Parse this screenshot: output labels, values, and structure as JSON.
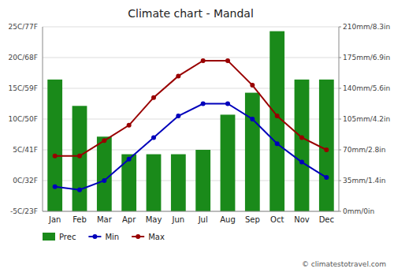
{
  "chart_data": {
    "type": "bar",
    "title": "Climate chart - Mandal",
    "categories": [
      "Jan",
      "Feb",
      "Mar",
      "Apr",
      "May",
      "Jun",
      "Jul",
      "Aug",
      "Sep",
      "Oct",
      "Nov",
      "Dec"
    ],
    "series": [
      {
        "name": "Prec",
        "type": "bar",
        "axis": "y2",
        "color": "#1a8a1a",
        "values": [
          150,
          120,
          85,
          65,
          65,
          65,
          70,
          110,
          135,
          205,
          150,
          150
        ]
      },
      {
        "name": "Min",
        "type": "line",
        "color": "#0000bb",
        "marker": "circle",
        "values": [
          -1,
          -1.5,
          0,
          3.5,
          7,
          10.5,
          12.5,
          12.5,
          10,
          6,
          3,
          0.5
        ]
      },
      {
        "name": "Max",
        "type": "line",
        "color": "#990000",
        "marker": "circle",
        "values": [
          4,
          4,
          6.5,
          9,
          13.5,
          17,
          19.5,
          19.5,
          15.5,
          10.5,
          7,
          5
        ]
      }
    ],
    "ylim": [
      -5,
      25
    ],
    "yticks": [
      {
        "value": -5,
        "label": "-5C/23F"
      },
      {
        "value": 0,
        "label": "0C/32F"
      },
      {
        "value": 5,
        "label": "5C/41F"
      },
      {
        "value": 10,
        "label": "10C/50F"
      },
      {
        "value": 15,
        "label": "15C/59F"
      },
      {
        "value": 20,
        "label": "20C/68F"
      },
      {
        "value": 25,
        "label": "25C/77F"
      }
    ],
    "y2lim": [
      0,
      210
    ],
    "y2ticks": [
      {
        "value": 0,
        "label": "0mm/0in"
      },
      {
        "value": 35,
        "label": "35mm/1.4in"
      },
      {
        "value": 70,
        "label": "70mm/2.8in"
      },
      {
        "value": 105,
        "label": "105mm/4.2in"
      },
      {
        "value": 140,
        "label": "140mm/5.6in"
      },
      {
        "value": 175,
        "label": "175mm/6.9in"
      },
      {
        "value": 210,
        "label": "210mm/8.3in"
      }
    ],
    "grid": true,
    "legend": "bottom",
    "annotations": [
      "© climatestotravel.com"
    ]
  }
}
